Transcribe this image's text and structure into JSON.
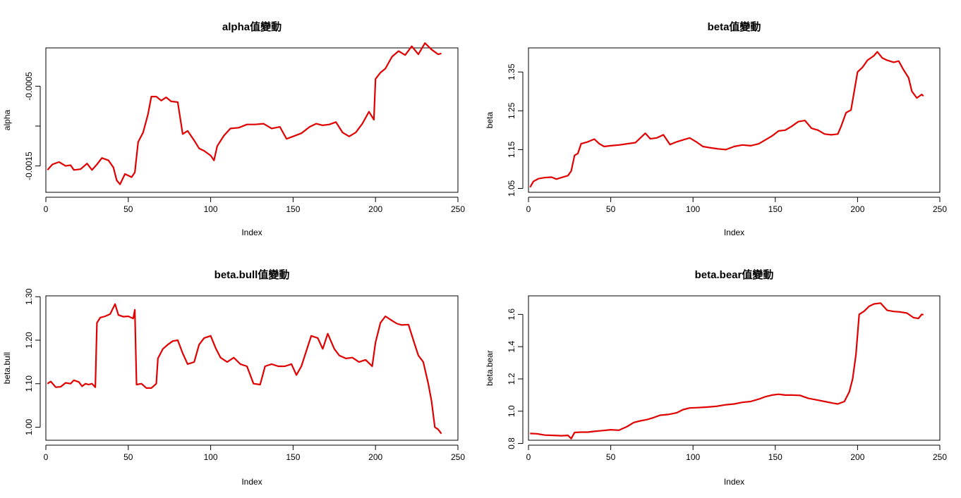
{
  "chart_data": [
    {
      "type": "line",
      "title": "alpha值變動",
      "xlabel": "Index",
      "ylabel": "alpha",
      "xlim": [
        0,
        250
      ],
      "ylim": [
        -0.00183,
        -2e-05
      ],
      "x_ticks": [
        0,
        50,
        100,
        150,
        200,
        250
      ],
      "y_ticks": [
        -0.0015,
        -0.001,
        -0.0005
      ],
      "y_tick_labels": [
        "-0.0015",
        "",
        "-0.0005"
      ],
      "grid": false,
      "color": "#e00000",
      "points": [
        [
          1,
          -0.00155
        ],
        [
          4,
          -0.00148
        ],
        [
          8,
          -0.00145
        ],
        [
          12,
          -0.0015
        ],
        [
          15,
          -0.00149
        ],
        [
          17,
          -0.00155
        ],
        [
          21,
          -0.00154
        ],
        [
          25,
          -0.00147
        ],
        [
          28,
          -0.00155
        ],
        [
          31,
          -0.00148
        ],
        [
          34,
          -0.0014
        ],
        [
          38,
          -0.00143
        ],
        [
          41,
          -0.00152
        ],
        [
          43,
          -0.00168
        ],
        [
          45,
          -0.00173
        ],
        [
          48,
          -0.0016
        ],
        [
          52,
          -0.00164
        ],
        [
          54,
          -0.00158
        ],
        [
          56,
          -0.0012
        ],
        [
          59,
          -0.00108
        ],
        [
          62,
          -0.00085
        ],
        [
          64,
          -0.00063
        ],
        [
          67,
          -0.00063
        ],
        [
          70,
          -0.00068
        ],
        [
          73,
          -0.00064
        ],
        [
          76,
          -0.00069
        ],
        [
          80,
          -0.0007
        ],
        [
          83,
          -0.0011
        ],
        [
          86,
          -0.00106
        ],
        [
          90,
          -0.00118
        ],
        [
          93,
          -0.00128
        ],
        [
          96,
          -0.00131
        ],
        [
          100,
          -0.00137
        ],
        [
          102,
          -0.00143
        ],
        [
          104,
          -0.00125
        ],
        [
          108,
          -0.00112
        ],
        [
          112,
          -0.00103
        ],
        [
          117,
          -0.00102
        ],
        [
          122,
          -0.00098
        ],
        [
          127,
          -0.00098
        ],
        [
          132,
          -0.00097
        ],
        [
          137,
          -0.00103
        ],
        [
          142,
          -0.00101
        ],
        [
          146,
          -0.00116
        ],
        [
          150,
          -0.00113
        ],
        [
          155,
          -0.00109
        ],
        [
          160,
          -0.00101
        ],
        [
          164,
          -0.00097
        ],
        [
          168,
          -0.00099
        ],
        [
          172,
          -0.00098
        ],
        [
          176,
          -0.00095
        ],
        [
          180,
          -0.00108
        ],
        [
          184,
          -0.00113
        ],
        [
          188,
          -0.00108
        ],
        [
          192,
          -0.00097
        ],
        [
          196,
          -0.00082
        ],
        [
          199,
          -0.00092
        ],
        [
          200,
          -0.00041
        ],
        [
          203,
          -0.00033
        ],
        [
          206,
          -0.00028
        ],
        [
          210,
          -0.00013
        ],
        [
          214,
          -6e-05
        ],
        [
          218,
          -0.00011
        ],
        [
          222,
          0.0
        ],
        [
          226,
          -0.0001
        ],
        [
          230,
          4e-05
        ],
        [
          234,
          -4e-05
        ],
        [
          238,
          -0.0001
        ],
        [
          240,
          -9e-05
        ]
      ]
    },
    {
      "type": "line",
      "title": "beta值變動",
      "xlabel": "Index",
      "ylabel": "beta",
      "xlim": [
        0,
        250
      ],
      "ylim": [
        1.04,
        1.412
      ],
      "x_ticks": [
        0,
        50,
        100,
        150,
        200,
        250
      ],
      "y_ticks": [
        1.05,
        1.15,
        1.25,
        1.35
      ],
      "y_tick_labels": [
        "1.05",
        "1.15",
        "1.25",
        "1.35"
      ],
      "grid": false,
      "color": "#e00000",
      "points": [
        [
          1,
          1.053
        ],
        [
          3,
          1.068
        ],
        [
          6,
          1.075
        ],
        [
          10,
          1.078
        ],
        [
          14,
          1.079
        ],
        [
          17,
          1.074
        ],
        [
          20,
          1.078
        ],
        [
          24,
          1.083
        ],
        [
          26,
          1.095
        ],
        [
          28,
          1.135
        ],
        [
          30,
          1.14
        ],
        [
          32,
          1.165
        ],
        [
          36,
          1.17
        ],
        [
          40,
          1.177
        ],
        [
          43,
          1.165
        ],
        [
          46,
          1.158
        ],
        [
          50,
          1.16
        ],
        [
          55,
          1.162
        ],
        [
          60,
          1.165
        ],
        [
          65,
          1.168
        ],
        [
          68,
          1.18
        ],
        [
          71,
          1.192
        ],
        [
          74,
          1.178
        ],
        [
          78,
          1.18
        ],
        [
          82,
          1.188
        ],
        [
          86,
          1.163
        ],
        [
          90,
          1.17
        ],
        [
          94,
          1.175
        ],
        [
          98,
          1.18
        ],
        [
          102,
          1.17
        ],
        [
          106,
          1.158
        ],
        [
          110,
          1.155
        ],
        [
          115,
          1.152
        ],
        [
          120,
          1.15
        ],
        [
          125,
          1.158
        ],
        [
          130,
          1.162
        ],
        [
          135,
          1.16
        ],
        [
          140,
          1.165
        ],
        [
          144,
          1.175
        ],
        [
          148,
          1.185
        ],
        [
          152,
          1.198
        ],
        [
          156,
          1.2
        ],
        [
          160,
          1.21
        ],
        [
          164,
          1.222
        ],
        [
          168,
          1.225
        ],
        [
          172,
          1.205
        ],
        [
          176,
          1.2
        ],
        [
          180,
          1.19
        ],
        [
          184,
          1.188
        ],
        [
          188,
          1.19
        ],
        [
          190,
          1.21
        ],
        [
          193,
          1.245
        ],
        [
          196,
          1.252
        ],
        [
          200,
          1.35
        ],
        [
          203,
          1.362
        ],
        [
          206,
          1.38
        ],
        [
          210,
          1.392
        ],
        [
          212,
          1.402
        ],
        [
          215,
          1.386
        ],
        [
          218,
          1.38
        ],
        [
          222,
          1.375
        ],
        [
          225,
          1.378
        ],
        [
          228,
          1.355
        ],
        [
          231,
          1.335
        ],
        [
          233,
          1.3
        ],
        [
          236,
          1.283
        ],
        [
          239,
          1.292
        ],
        [
          240,
          1.288
        ]
      ]
    },
    {
      "type": "line",
      "title": "beta.bull值變動",
      "xlabel": "Index",
      "ylabel": "beta.bull",
      "xlim": [
        0,
        250
      ],
      "ylim": [
        0.97,
        1.302
      ],
      "x_ticks": [
        0,
        50,
        100,
        150,
        200,
        250
      ],
      "y_ticks": [
        1.0,
        1.1,
        1.2,
        1.3
      ],
      "y_tick_labels": [
        "1.00",
        "1.10",
        "1.20",
        "1.30"
      ],
      "grid": false,
      "color": "#e00000",
      "points": [
        [
          1,
          1.1
        ],
        [
          3,
          1.105
        ],
        [
          6,
          1.092
        ],
        [
          9,
          1.093
        ],
        [
          12,
          1.102
        ],
        [
          15,
          1.1
        ],
        [
          17,
          1.108
        ],
        [
          20,
          1.104
        ],
        [
          22,
          1.094
        ],
        [
          24,
          1.1
        ],
        [
          26,
          1.098
        ],
        [
          28,
          1.1
        ],
        [
          30,
          1.092
        ],
        [
          31,
          1.24
        ],
        [
          33,
          1.252
        ],
        [
          36,
          1.255
        ],
        [
          39,
          1.26
        ],
        [
          42,
          1.283
        ],
        [
          44,
          1.258
        ],
        [
          47,
          1.254
        ],
        [
          50,
          1.255
        ],
        [
          53,
          1.25
        ],
        [
          54,
          1.27
        ],
        [
          55,
          1.098
        ],
        [
          58,
          1.1
        ],
        [
          61,
          1.09
        ],
        [
          64,
          1.09
        ],
        [
          67,
          1.1
        ],
        [
          68,
          1.158
        ],
        [
          71,
          1.18
        ],
        [
          74,
          1.19
        ],
        [
          77,
          1.198
        ],
        [
          80,
          1.2
        ],
        [
          83,
          1.17
        ],
        [
          86,
          1.145
        ],
        [
          90,
          1.15
        ],
        [
          93,
          1.19
        ],
        [
          96,
          1.205
        ],
        [
          100,
          1.21
        ],
        [
          103,
          1.182
        ],
        [
          106,
          1.16
        ],
        [
          110,
          1.15
        ],
        [
          114,
          1.16
        ],
        [
          118,
          1.145
        ],
        [
          122,
          1.14
        ],
        [
          126,
          1.1
        ],
        [
          130,
          1.098
        ],
        [
          133,
          1.14
        ],
        [
          137,
          1.145
        ],
        [
          141,
          1.14
        ],
        [
          145,
          1.14
        ],
        [
          149,
          1.145
        ],
        [
          152,
          1.12
        ],
        [
          155,
          1.14
        ],
        [
          158,
          1.175
        ],
        [
          161,
          1.21
        ],
        [
          165,
          1.205
        ],
        [
          168,
          1.18
        ],
        [
          171,
          1.215
        ],
        [
          175,
          1.18
        ],
        [
          178,
          1.165
        ],
        [
          182,
          1.158
        ],
        [
          186,
          1.16
        ],
        [
          190,
          1.15
        ],
        [
          194,
          1.155
        ],
        [
          198,
          1.14
        ],
        [
          200,
          1.195
        ],
        [
          203,
          1.24
        ],
        [
          206,
          1.255
        ],
        [
          210,
          1.245
        ],
        [
          213,
          1.238
        ],
        [
          216,
          1.235
        ],
        [
          220,
          1.236
        ],
        [
          223,
          1.2
        ],
        [
          226,
          1.165
        ],
        [
          229,
          1.15
        ],
        [
          232,
          1.1
        ],
        [
          234,
          1.06
        ],
        [
          236,
          1.0
        ],
        [
          238,
          0.995
        ],
        [
          240,
          0.985
        ]
      ]
    },
    {
      "type": "line",
      "title": "beta.bear值變動",
      "xlabel": "Index",
      "ylabel": "beta.bear",
      "xlim": [
        0,
        250
      ],
      "ylim": [
        0.82,
        1.715
      ],
      "x_ticks": [
        0,
        50,
        100,
        150,
        200,
        250
      ],
      "y_ticks": [
        0.8,
        1.0,
        1.2,
        1.4,
        1.6
      ],
      "y_tick_labels": [
        "0.8",
        "1.0",
        "1.2",
        "1.4",
        "1.6"
      ],
      "grid": false,
      "color": "#e00000",
      "points": [
        [
          1,
          0.862
        ],
        [
          5,
          0.86
        ],
        [
          10,
          0.852
        ],
        [
          15,
          0.85
        ],
        [
          20,
          0.848
        ],
        [
          24,
          0.85
        ],
        [
          26,
          0.83
        ],
        [
          28,
          0.868
        ],
        [
          32,
          0.87
        ],
        [
          36,
          0.87
        ],
        [
          40,
          0.875
        ],
        [
          45,
          0.88
        ],
        [
          50,
          0.885
        ],
        [
          55,
          0.882
        ],
        [
          60,
          0.905
        ],
        [
          64,
          0.93
        ],
        [
          68,
          0.94
        ],
        [
          72,
          0.948
        ],
        [
          76,
          0.96
        ],
        [
          80,
          0.975
        ],
        [
          85,
          0.98
        ],
        [
          90,
          0.99
        ],
        [
          94,
          1.01
        ],
        [
          98,
          1.02
        ],
        [
          103,
          1.022
        ],
        [
          108,
          1.025
        ],
        [
          114,
          1.03
        ],
        [
          120,
          1.04
        ],
        [
          125,
          1.045
        ],
        [
          130,
          1.055
        ],
        [
          135,
          1.06
        ],
        [
          140,
          1.075
        ],
        [
          144,
          1.09
        ],
        [
          148,
          1.1
        ],
        [
          152,
          1.105
        ],
        [
          156,
          1.1
        ],
        [
          160,
          1.1
        ],
        [
          165,
          1.098
        ],
        [
          170,
          1.08
        ],
        [
          175,
          1.07
        ],
        [
          180,
          1.06
        ],
        [
          185,
          1.05
        ],
        [
          188,
          1.045
        ],
        [
          192,
          1.06
        ],
        [
          195,
          1.12
        ],
        [
          197,
          1.2
        ],
        [
          199,
          1.35
        ],
        [
          201,
          1.6
        ],
        [
          204,
          1.62
        ],
        [
          207,
          1.65
        ],
        [
          210,
          1.665
        ],
        [
          214,
          1.67
        ],
        [
          218,
          1.625
        ],
        [
          222,
          1.618
        ],
        [
          226,
          1.615
        ],
        [
          230,
          1.608
        ],
        [
          234,
          1.58
        ],
        [
          237,
          1.575
        ],
        [
          239,
          1.6
        ],
        [
          240,
          1.598
        ]
      ]
    }
  ]
}
